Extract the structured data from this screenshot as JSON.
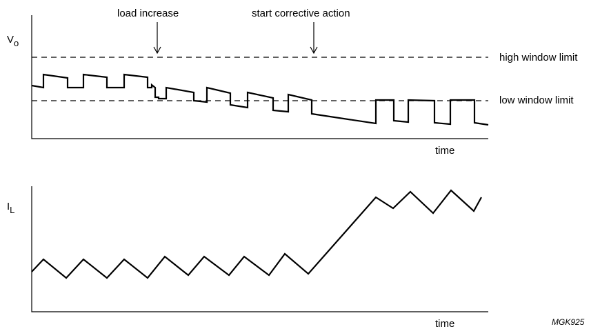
{
  "top_panel": {
    "y_label_main": "V",
    "y_label_sub": "o",
    "x_label": "time",
    "annotations": {
      "load_increase": "load increase",
      "start_corrective_action": "start corrective action"
    },
    "limits": {
      "high": "high window limit",
      "low": "low window limit"
    }
  },
  "bottom_panel": {
    "y_label_main": "I",
    "y_label_sub": "L",
    "x_label": "time"
  },
  "figure_ref": "MGK925"
}
